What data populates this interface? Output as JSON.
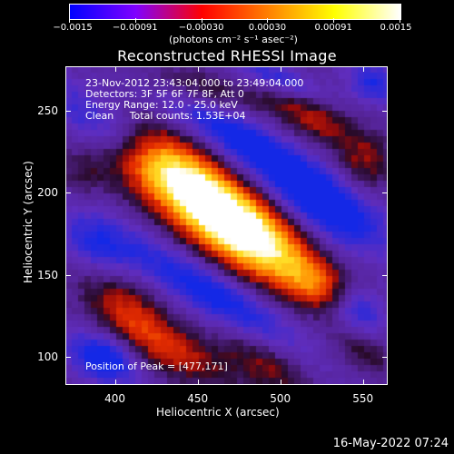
{
  "colorbar": {
    "ticks": [
      "−0.0015",
      "−0.00091",
      "−0.00030",
      "0.00030",
      "0.00091",
      "0.0015"
    ],
    "units": "(photons cm⁻² s⁻¹ asec⁻²)",
    "colors": [
      "#0000ff",
      "#8000ff",
      "#ff0000",
      "#ff8000",
      "#ffff00",
      "#ffffff"
    ]
  },
  "plot": {
    "title": "Reconstructed RHESSI Image",
    "xlabel": "Heliocentric X (arcsec)",
    "ylabel": "Heliocentric Y (arcsec)",
    "xticks": [
      "400",
      "450",
      "500",
      "550"
    ],
    "yticks": [
      "250",
      "200",
      "150",
      "100"
    ],
    "info": {
      "line1": "23-Nov-2012 23:43:04.000 to 23:49:04.000",
      "line2": "Detectors: 3F 5F 6F 7F 8F, Att 0",
      "line3": "Energy Range: 12.0 - 25.0 keV",
      "line4": "Clean     Total counts: 1.53E+04"
    },
    "peak": "Position of Peak = [477,171]"
  },
  "footer": {
    "timestamp": "16-May-2022 07:24"
  },
  "chart_data": {
    "type": "heatmap",
    "title": "Reconstructed RHESSI Image",
    "xlabel": "Heliocentric X (arcsec)",
    "ylabel": "Heliocentric Y (arcsec)",
    "xlim": [
      370,
      565
    ],
    "ylim": [
      83,
      277
    ],
    "color_range": [
      -0.0015,
      0.0015
    ],
    "peak": [
      477,
      171
    ]
  }
}
